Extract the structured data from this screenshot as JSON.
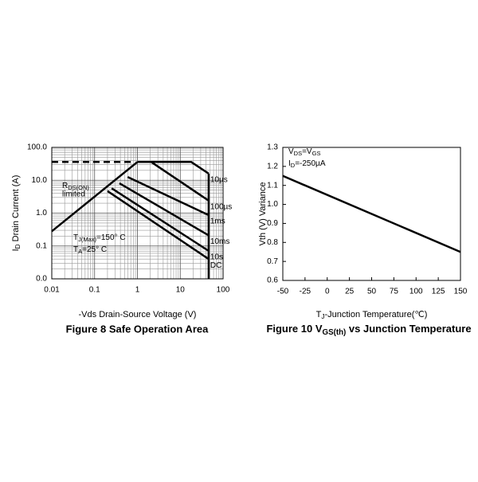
{
  "chart_data": [
    {
      "type": "line",
      "log_x": true,
      "log_y": true,
      "grid": true,
      "minor_grid": true,
      "caption": "Figure 8 Safe Operation Area",
      "x_label": "-Vds Drain-Source Voltage (V)",
      "y_label": [
        "I",
        "D",
        " Drain Current (A)"
      ],
      "annotations": [
        [
          "R",
          "DS(ON)"
        ],
        "limited",
        [
          "T",
          "J(Max)",
          "=150° C"
        ],
        [
          "T",
          "A",
          "=25° C"
        ]
      ],
      "xlim": [
        0.01,
        100
      ],
      "ylim": [
        0.01,
        100
      ],
      "xticks": [
        0.01,
        0.1,
        1,
        10,
        100
      ],
      "yticks": [
        {
          "value": 0.01,
          "label": "0.0"
        },
        0.1,
        {
          "value": 1,
          "label": "1.0"
        },
        {
          "value": 10,
          "label": "10.0"
        },
        {
          "value": 100,
          "label": "100.0"
        }
      ],
      "color": "#000000",
      "series": [
        {
          "dashed": true,
          "x": [
            0.01,
            0.75
          ],
          "values": [
            36,
            36
          ]
        },
        {
          "x": [
            0.01,
            1
          ],
          "values": [
            0.28,
            36
          ]
        },
        {
          "name": "10µs",
          "x": [
            1,
            18,
            46
          ],
          "values": [
            36,
            36,
            16
          ]
        },
        {
          "name": "100µs",
          "x": [
            2.1,
            46
          ],
          "values": [
            36,
            2.4
          ]
        },
        {
          "name": "1ms",
          "x": [
            0.59,
            46
          ],
          "values": [
            12.6,
            0.87
          ]
        },
        {
          "name": "10ms",
          "x": [
            0.38,
            46
          ],
          "values": [
            8.1,
            0.21
          ]
        },
        {
          "name": "10s",
          "x": [
            0.25,
            46
          ],
          "values": [
            5.7,
            0.071
          ]
        },
        {
          "name": "DC",
          "x": [
            0.2,
            46
          ],
          "values": [
            4.7,
            0.04
          ]
        },
        {
          "x": [
            46,
            46
          ],
          "values": [
            16,
            0.01
          ]
        }
      ]
    },
    {
      "type": "line",
      "grid": false,
      "caption": [
        "Figure 10 V",
        "GS(th)",
        " vs Junction Temperature"
      ],
      "x_label": [
        "T",
        "J",
        "-Junction Temperature(℃)"
      ],
      "y_label": "Vth (V) Variance",
      "annotations": [
        [
          "V",
          "DS",
          "=V",
          "GS"
        ],
        [
          "I",
          "D",
          "=-250µA"
        ]
      ],
      "xlim": [
        -50,
        150
      ],
      "ylim": [
        0.6,
        1.3
      ],
      "xticks": [
        -50,
        -25,
        0,
        25,
        50,
        75,
        100,
        125,
        150
      ],
      "yticks": [
        0.6,
        0.7,
        0.8,
        0.9,
        {
          "value": 1,
          "label": "1.0"
        },
        1.1,
        1.2,
        1.3
      ],
      "color": "#000000",
      "series": [
        {
          "x": [
            -50,
            150
          ],
          "values": [
            1.15,
            0.75
          ]
        }
      ]
    }
  ]
}
